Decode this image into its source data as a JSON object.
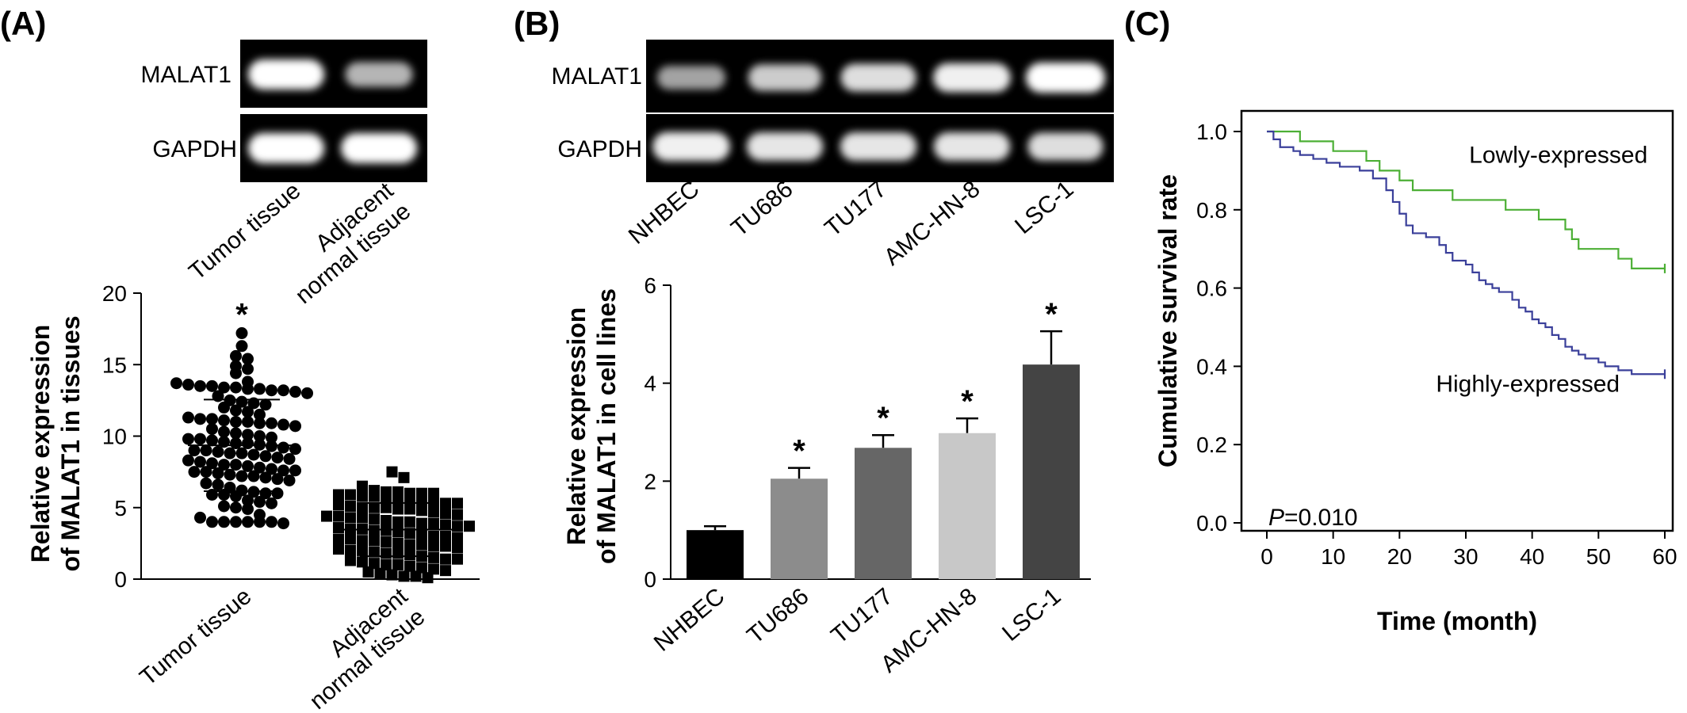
{
  "panels": {
    "a": {
      "letter": "(A)"
    },
    "b": {
      "letter": "(B)"
    },
    "c": {
      "letter": "(C)"
    }
  },
  "blot_a": {
    "rows": [
      "MALAT1",
      "GAPDH"
    ],
    "lanes": [
      "Tumor tissue",
      "Adjacent\nnormal tissue"
    ],
    "intensity": {
      "MALAT1": [
        1.0,
        0.55
      ],
      "GAPDH": [
        1.0,
        1.0
      ]
    }
  },
  "blot_b": {
    "rows": [
      "MALAT1",
      "GAPDH"
    ],
    "lanes": [
      "NHBEC",
      "TU686",
      "TU177",
      "AMC-HN-8",
      "LSC-1"
    ],
    "intensity": {
      "MALAT1": [
        0.45,
        0.7,
        0.8,
        0.9,
        1.0
      ],
      "GAPDH": [
        0.9,
        0.85,
        0.85,
        0.85,
        0.8
      ]
    }
  },
  "colors": {
    "blot_background": "#000000",
    "band": "#ffffff",
    "lowly_line": "#4caf35",
    "highly_line": "#3a3f9a",
    "bar_colors": [
      "#000000",
      "#8c8c8c",
      "#666666",
      "#c8c8c8",
      "#444444"
    ]
  },
  "chart_data": [
    {
      "type": "scatter",
      "panel": "A",
      "ylabel": "Relative expression\nof MALAT1 in tissues",
      "categories": [
        "Tumor tissue",
        "Adjacent\nnormal tissue"
      ],
      "ylim": [
        0,
        20
      ],
      "yticks": [
        0,
        5,
        10,
        15,
        20
      ],
      "significance": [
        "*",
        ""
      ],
      "series": [
        {
          "marker": "circle",
          "values": [
            17.2,
            16.3,
            15.6,
            15.4,
            14.9,
            14.7,
            14.4,
            13.8,
            13.7,
            13.6,
            13.5,
            13.5,
            13.4,
            13.4,
            13.3,
            13.3,
            13.2,
            13.2,
            13.1,
            13.0,
            12.8,
            12.5,
            12.4,
            12.3,
            12.2,
            12.0,
            11.8,
            11.7,
            11.5,
            11.3,
            11.2,
            11.2,
            11.1,
            11.0,
            11.0,
            10.9,
            10.9,
            10.8,
            10.7,
            10.5,
            10.3,
            10.2,
            10.1,
            10.0,
            9.9,
            9.8,
            9.8,
            9.7,
            9.6,
            9.5,
            9.5,
            9.4,
            9.3,
            9.2,
            9.1,
            9.0,
            9.0,
            8.9,
            8.8,
            8.8,
            8.7,
            8.6,
            8.5,
            8.4,
            8.3,
            8.2,
            8.1,
            8.0,
            8.0,
            7.9,
            7.8,
            7.7,
            7.6,
            7.6,
            7.5,
            7.5,
            7.4,
            7.3,
            7.2,
            7.2,
            7.1,
            7.0,
            6.9,
            6.7,
            6.6,
            6.4,
            6.2,
            6.1,
            6.0,
            6.0,
            5.9,
            5.9,
            5.8,
            5.5,
            5.4,
            5.3,
            5.1,
            5.0,
            4.9,
            4.5,
            4.3,
            4.0,
            4.0,
            4.0,
            4.0,
            4.0,
            4.0,
            3.9
          ]
        },
        {
          "marker": "square",
          "values": [
            7.5,
            7.1,
            6.5,
            6.2,
            6.1,
            6.1,
            6.0,
            6.0,
            6.0,
            5.9,
            5.9,
            5.8,
            5.8,
            5.7,
            5.6,
            5.5,
            5.4,
            5.4,
            5.3,
            5.3,
            5.2,
            5.1,
            5.0,
            5.0,
            5.0,
            4.9,
            4.9,
            4.8,
            4.7,
            4.6,
            4.5,
            4.4,
            4.4,
            4.3,
            4.3,
            4.2,
            4.1,
            4.0,
            4.0,
            3.9,
            3.9,
            3.8,
            3.7,
            3.7,
            3.6,
            3.5,
            3.5,
            3.4,
            3.4,
            3.3,
            3.2,
            3.1,
            3.0,
            3.0,
            2.9,
            2.8,
            2.8,
            2.7,
            2.7,
            2.6,
            2.5,
            2.4,
            2.4,
            2.3,
            2.3,
            2.2,
            2.1,
            2.0,
            2.0,
            1.9,
            1.8,
            1.8,
            1.7,
            1.6,
            1.5,
            1.4,
            1.4,
            1.3,
            1.2,
            1.1,
            1.0,
            1.0,
            0.9,
            0.8,
            0.7,
            0.6,
            0.5,
            0.4,
            0.3,
            0.2,
            0.2,
            0.1
          ]
        }
      ]
    },
    {
      "type": "bar",
      "panel": "B",
      "ylabel": "Relative expression\nof MALAT1 in cell lines",
      "categories": [
        "NHBEC",
        "TU686",
        "TU177",
        "AMC-HN-8",
        "LSC-1"
      ],
      "values": [
        1.0,
        2.05,
        2.68,
        2.98,
        4.38
      ],
      "errors": [
        0.08,
        0.22,
        0.26,
        0.3,
        0.68
      ],
      "significance": [
        "",
        "*",
        "*",
        "*",
        "*"
      ],
      "ylim": [
        0,
        6
      ],
      "yticks": [
        0,
        2,
        4,
        6
      ]
    },
    {
      "type": "line",
      "panel": "C",
      "xlabel": "Time (month)",
      "ylabel": "Cumulative survival rate",
      "xlim": [
        0,
        60
      ],
      "ylim": [
        0,
        1.0
      ],
      "xticks": [
        0,
        10,
        20,
        30,
        40,
        50,
        60
      ],
      "yticks": [
        "0.0",
        "0.2",
        "0.4",
        "0.6",
        "0.8",
        "1.0"
      ],
      "annotation": {
        "italic": "P",
        "rest": "=0.010"
      },
      "series": [
        {
          "name": "Lowly-expressed",
          "step": true,
          "x": [
            0,
            5,
            10,
            15,
            17,
            20,
            22,
            26,
            28,
            30,
            36,
            38,
            41,
            43,
            45,
            46,
            47,
            48,
            52,
            53,
            55,
            60
          ],
          "y": [
            1.0,
            0.975,
            0.95,
            0.925,
            0.9,
            0.875,
            0.85,
            0.85,
            0.825,
            0.825,
            0.8,
            0.8,
            0.775,
            0.775,
            0.75,
            0.725,
            0.7,
            0.7,
            0.7,
            0.675,
            0.65,
            0.65
          ]
        },
        {
          "name": "Highly-expressed",
          "step": true,
          "x": [
            0,
            1,
            2,
            4,
            5,
            7,
            9,
            11,
            14,
            16,
            18,
            19,
            20,
            21,
            22,
            24,
            26,
            27,
            28,
            30,
            31,
            32,
            33,
            34,
            35,
            37,
            38,
            39,
            40,
            41,
            42,
            43,
            44,
            45,
            46,
            47,
            48,
            50,
            51,
            53,
            55,
            57,
            60
          ],
          "y": [
            1.0,
            0.98,
            0.96,
            0.95,
            0.94,
            0.93,
            0.92,
            0.91,
            0.9,
            0.88,
            0.85,
            0.82,
            0.79,
            0.76,
            0.74,
            0.73,
            0.71,
            0.69,
            0.67,
            0.66,
            0.64,
            0.62,
            0.61,
            0.6,
            0.59,
            0.57,
            0.55,
            0.54,
            0.52,
            0.51,
            0.5,
            0.48,
            0.47,
            0.45,
            0.44,
            0.43,
            0.42,
            0.41,
            0.4,
            0.39,
            0.38,
            0.38,
            0.38
          ]
        }
      ]
    }
  ]
}
